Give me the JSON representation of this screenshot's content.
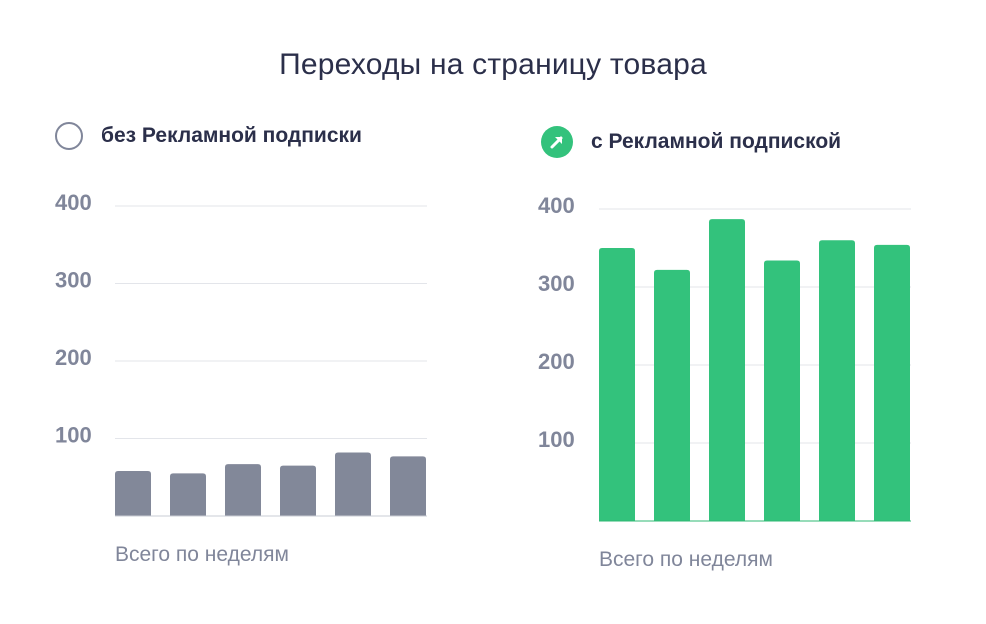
{
  "title": "Переходы на страницу товара",
  "chart_data": [
    {
      "type": "bar",
      "legend": "без Рекламной подписки",
      "xlabel": "Всего по неделям",
      "ylim": [
        0,
        400
      ],
      "yticks": [
        "100",
        "200",
        "300",
        "400"
      ],
      "values": [
        58,
        55,
        67,
        65,
        82,
        77
      ],
      "color": "#828899",
      "grid": true
    },
    {
      "type": "bar",
      "legend": "с Рекламной подпиской",
      "xlabel": "Всего по неделям",
      "ylim": [
        0,
        400
      ],
      "yticks": [
        "100",
        "200",
        "300",
        "400"
      ],
      "values": [
        350,
        322,
        387,
        334,
        360,
        354
      ],
      "color": "#33c27c",
      "grid": true
    }
  ],
  "icons": {
    "left": "empty-circle-icon",
    "right": "arrow-up-right-icon"
  }
}
